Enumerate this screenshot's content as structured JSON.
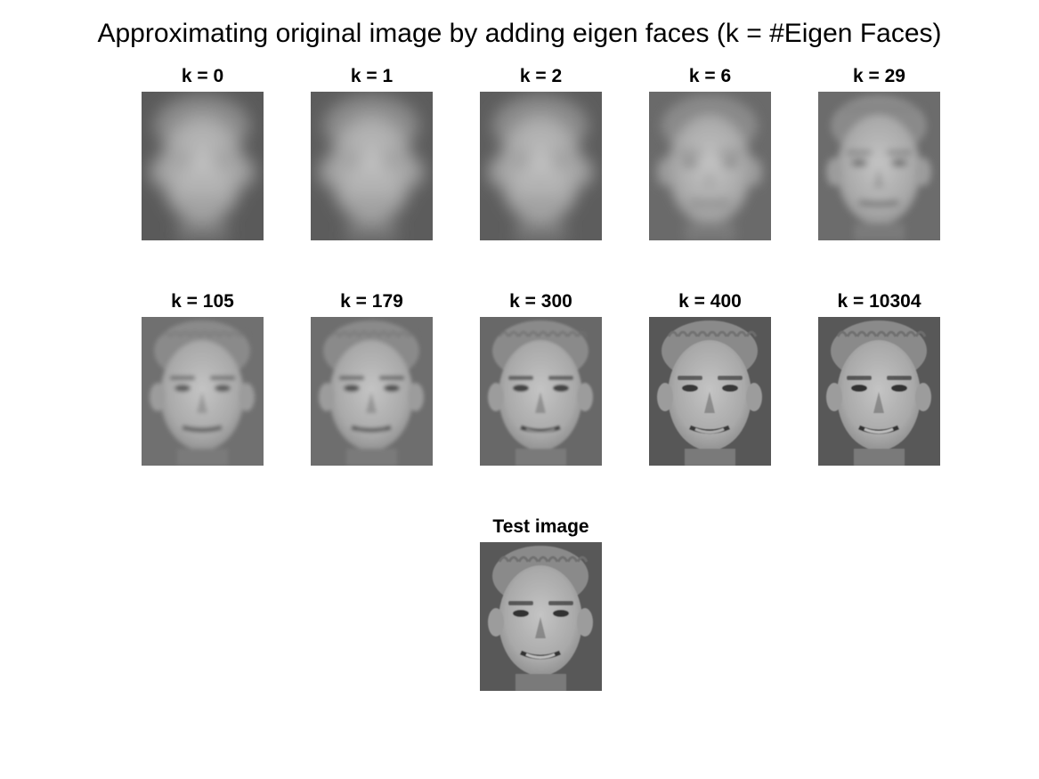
{
  "title": "Approximating original image by adding eigen faces (k = #Eigen Faces)",
  "panels": [
    {
      "label": "k = 0",
      "k": 0
    },
    {
      "label": "k = 1",
      "k": 1
    },
    {
      "label": "k = 2",
      "k": 2
    },
    {
      "label": "k = 6",
      "k": 6
    },
    {
      "label": "k = 29",
      "k": 29
    },
    {
      "label": "k = 105",
      "k": 105
    },
    {
      "label": "k = 179",
      "k": 179
    },
    {
      "label": "k = 300",
      "k": 300
    },
    {
      "label": "k = 400",
      "k": 400
    },
    {
      "label": "k = 10304",
      "k": 10304
    }
  ],
  "test_panel": {
    "label": "Test image"
  }
}
